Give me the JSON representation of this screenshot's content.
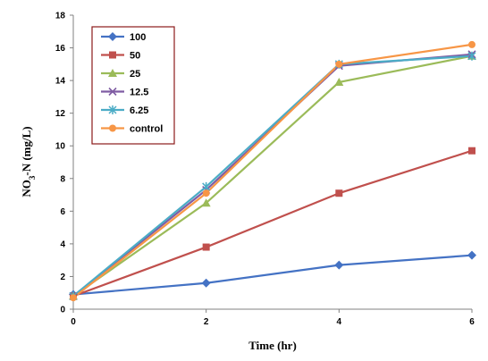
{
  "chart_data": {
    "type": "line",
    "xlabel": "Time (hr)",
    "ylabel": "NO3-N (mg/L)",
    "x": [
      0,
      2,
      4,
      6
    ],
    "xticks": [
      "0",
      "2",
      "4",
      "6"
    ],
    "yticks": [
      "0",
      "2",
      "4",
      "6",
      "8",
      "10",
      "12",
      "14",
      "16",
      "18"
    ],
    "xlim": [
      0,
      6
    ],
    "ylim": [
      0,
      18
    ],
    "grid": false,
    "legend_position": "top-left",
    "series": [
      {
        "name": "100",
        "values": [
          0.9,
          1.6,
          2.7,
          3.3
        ],
        "color": "#4472C4",
        "marker": "diamond"
      },
      {
        "name": "50",
        "values": [
          0.8,
          3.8,
          7.1,
          9.7
        ],
        "color": "#C0504D",
        "marker": "square"
      },
      {
        "name": "25",
        "values": [
          0.8,
          6.5,
          13.9,
          15.5
        ],
        "color": "#9BBB59",
        "marker": "triangle"
      },
      {
        "name": "12.5",
        "values": [
          0.8,
          7.3,
          14.9,
          15.6
        ],
        "color": "#7F5CA3",
        "marker": "x"
      },
      {
        "name": "6.25",
        "values": [
          0.8,
          7.5,
          15.0,
          15.5
        ],
        "color": "#4BACC6",
        "marker": "star"
      },
      {
        "name": "control",
        "values": [
          0.7,
          7.1,
          15.0,
          16.2
        ],
        "color": "#F79646",
        "marker": "circle"
      }
    ]
  }
}
